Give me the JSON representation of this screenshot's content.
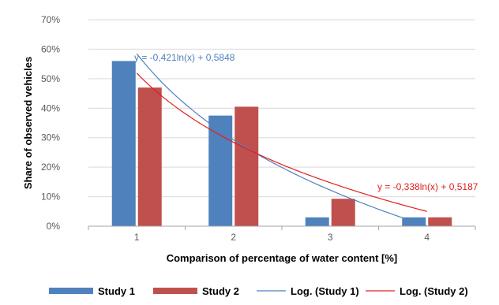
{
  "colors": {
    "study1": "#4f81bd",
    "study2": "#c0504d",
    "trend1": "#4f81bd",
    "trend2": "#e02020",
    "grid": "#d9d9d9",
    "axis": "#a6a6a6",
    "frame": "#cfcfcf"
  },
  "chart_data": {
    "type": "bar",
    "title": "",
    "xlabel": "Comparison of percentage of water content [%]",
    "ylabel": "Share of observed vehicles",
    "categories": [
      "1",
      "2",
      "3",
      "4"
    ],
    "ylim": [
      0,
      0.7
    ],
    "ytick_values": [
      0,
      0.1,
      0.2,
      0.3,
      0.4,
      0.5,
      0.6,
      0.7
    ],
    "ytick_labels": [
      "0%",
      "10%",
      "20%",
      "30%",
      "40%",
      "50%",
      "60%",
      "70%"
    ],
    "grid": true,
    "legend_position": "bottom",
    "series": [
      {
        "name": "Study 1",
        "values": [
          0.56,
          0.375,
          0.03,
          0.03
        ]
      },
      {
        "name": "Study 2",
        "values": [
          0.47,
          0.405,
          0.093,
          0.03
        ]
      }
    ],
    "trendlines": [
      {
        "name": "Log. (Study 1)",
        "a": -0.421,
        "b": 0.5848,
        "equation": "y = -0,421ln(x) + 0,5848"
      },
      {
        "name": "Log. (Study 2)",
        "a": -0.338,
        "b": 0.5187,
        "equation": "y = -0,338ln(x) + 0,5187"
      }
    ]
  }
}
